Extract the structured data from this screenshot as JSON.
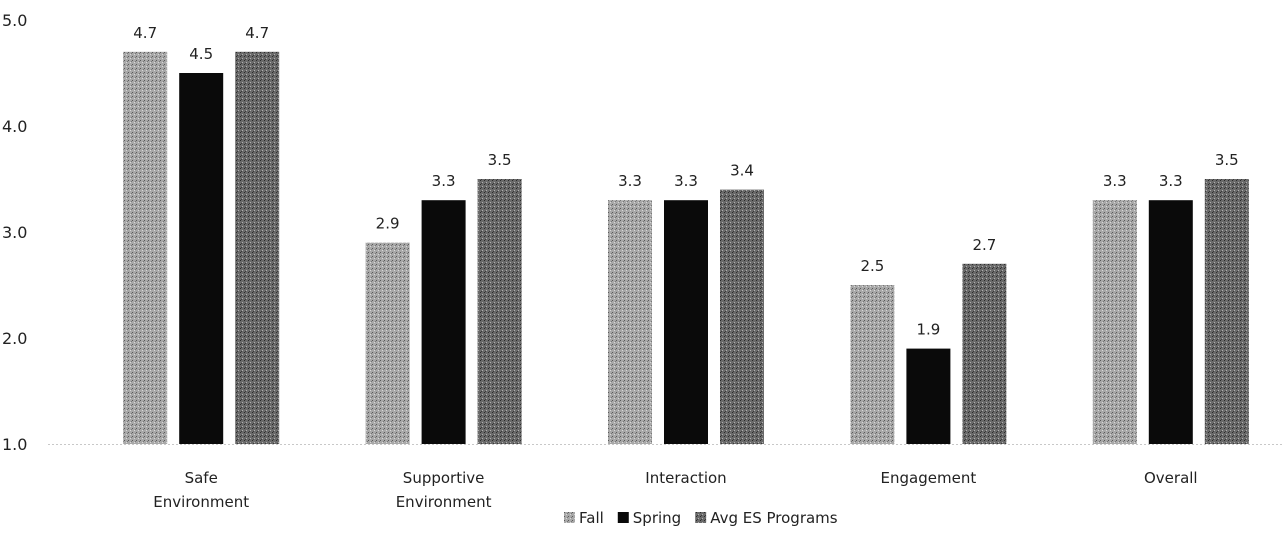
{
  "chart_data": {
    "type": "bar",
    "categories": [
      [
        "Safe",
        "Environment"
      ],
      [
        "Supportive",
        "Environment"
      ],
      [
        "Interaction"
      ],
      [
        "Engagement"
      ],
      [
        "Overall"
      ]
    ],
    "series": [
      {
        "name": "Fall",
        "values": [
          4.7,
          2.9,
          3.3,
          2.5,
          3.3
        ],
        "color": "#9a9a9a",
        "pattern": "dotted-light"
      },
      {
        "name": "Spring",
        "values": [
          4.5,
          3.3,
          3.3,
          1.9,
          3.3
        ],
        "color": "#0a0a0a",
        "pattern": "solid"
      },
      {
        "name": "Avg ES Programs",
        "values": [
          4.7,
          3.5,
          3.4,
          2.7,
          3.5
        ],
        "color": "#6e6e6e",
        "pattern": "dotted-dark"
      }
    ],
    "value_labels": [
      [
        "4.7",
        "2.9",
        "3.3",
        "2.5",
        "3.3"
      ],
      [
        "4.5",
        "3.3",
        "3.3",
        "1.9",
        "3.3"
      ],
      [
        "4.7",
        "3.5",
        "3.4",
        "2.7",
        "3.5"
      ]
    ],
    "ylim": [
      1.0,
      5.0
    ],
    "yticks": [
      "1.0",
      "2.0",
      "3.0",
      "4.0",
      "5.0"
    ],
    "grid": false,
    "legend_position": "bottom",
    "title": "",
    "xlabel": "",
    "ylabel": ""
  }
}
